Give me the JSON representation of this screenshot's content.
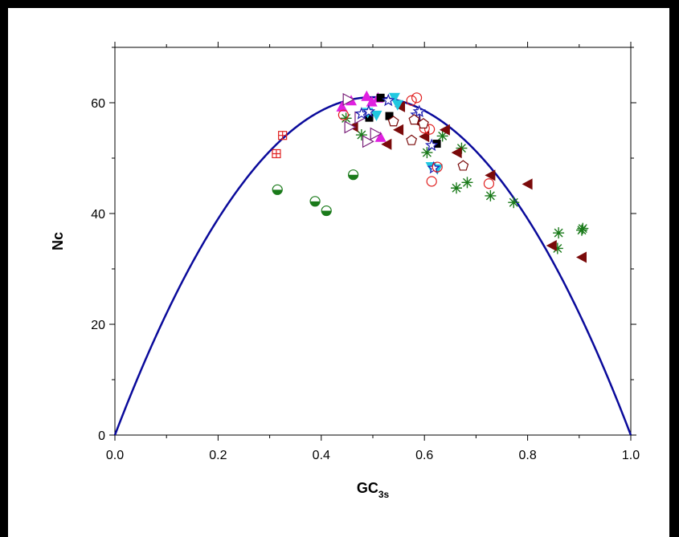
{
  "chart_data": {
    "type": "scatter",
    "title": "",
    "xlabel": "GC",
    "xlabel_sub": "3s",
    "ylabel": "Nc",
    "xlim": [
      0.0,
      1.0
    ],
    "ylim": [
      0,
      70
    ],
    "xticks": [
      "0.0",
      "0.2",
      "0.4",
      "0.6",
      "0.8",
      "1.0"
    ],
    "yticks": [
      "0",
      "20",
      "40",
      "60"
    ],
    "grid": false,
    "legend": "none",
    "expected_curve": {
      "formula": "Nc = 2 + GC3s + 29 / (GC3s^2 + (1 - GC3s)^2)",
      "color": "#0a0a9b"
    },
    "series": [
      {
        "marker": "half-filled-circle",
        "color": "#1a7a1a",
        "points": [
          [
            0.315,
            44.3
          ],
          [
            0.388,
            42.2
          ],
          [
            0.41,
            40.5
          ],
          [
            0.462,
            47.0
          ]
        ]
      },
      {
        "marker": "boxed-plus",
        "color": "#e02020",
        "points": [
          [
            0.313,
            50.8
          ],
          [
            0.325,
            54.1
          ]
        ]
      },
      {
        "marker": "asterisk",
        "color": "#1a7a1a",
        "points": [
          [
            0.448,
            57.2
          ],
          [
            0.478,
            54.2
          ],
          [
            0.605,
            51.0
          ],
          [
            0.635,
            54.0
          ],
          [
            0.672,
            51.8
          ],
          [
            0.662,
            44.6
          ],
          [
            0.683,
            45.6
          ],
          [
            0.728,
            43.2
          ],
          [
            0.773,
            42.0
          ],
          [
            0.86,
            36.5
          ],
          [
            0.858,
            33.7
          ],
          [
            0.905,
            37.0
          ],
          [
            0.907,
            37.3
          ]
        ]
      },
      {
        "marker": "triangle-left",
        "color": "#7a0a0a",
        "points": [
          [
            0.462,
            55.7
          ],
          [
            0.527,
            52.5
          ],
          [
            0.55,
            55.1
          ],
          [
            0.553,
            59.3
          ],
          [
            0.583,
            56.7
          ],
          [
            0.6,
            53.9
          ],
          [
            0.64,
            55.1
          ],
          [
            0.663,
            51.0
          ],
          [
            0.728,
            46.9
          ],
          [
            0.8,
            45.3
          ],
          [
            0.847,
            34.2
          ],
          [
            0.905,
            32.1
          ]
        ]
      },
      {
        "marker": "triangle-up",
        "color": "#e020e0",
        "points": [
          [
            0.44,
            59.3
          ],
          [
            0.458,
            60.4
          ],
          [
            0.488,
            61.2
          ],
          [
            0.498,
            60.2
          ],
          [
            0.515,
            53.8
          ],
          [
            0.51,
            60.9
          ]
        ]
      },
      {
        "marker": "triangle-right-open",
        "color": "#7a207a",
        "points": [
          [
            0.452,
            60.6
          ],
          [
            0.455,
            55.6
          ],
          [
            0.49,
            53.0
          ],
          [
            0.505,
            54.4
          ],
          [
            0.475,
            57.3
          ]
        ]
      },
      {
        "marker": "square",
        "color": "#000000",
        "points": [
          [
            0.493,
            57.3
          ],
          [
            0.515,
            60.9
          ],
          [
            0.532,
            57.6
          ],
          [
            0.624,
            52.6
          ]
        ]
      },
      {
        "marker": "triangle-down",
        "color": "#20c8e0",
        "points": [
          [
            0.49,
            58.2
          ],
          [
            0.507,
            57.7
          ],
          [
            0.542,
            60.9
          ],
          [
            0.548,
            59.6
          ],
          [
            0.625,
            48.0
          ],
          [
            0.613,
            48.4
          ]
        ]
      },
      {
        "marker": "star-open",
        "color": "#1a1ab0",
        "points": [
          [
            0.478,
            58.0
          ],
          [
            0.492,
            58.4
          ],
          [
            0.53,
            60.4
          ],
          [
            0.585,
            57.8
          ],
          [
            0.59,
            58.4
          ],
          [
            0.614,
            52.3
          ],
          [
            0.618,
            48.2
          ]
        ]
      },
      {
        "marker": "circle-open",
        "color": "#e02020",
        "points": [
          [
            0.443,
            57.8
          ],
          [
            0.575,
            60.4
          ],
          [
            0.585,
            60.9
          ],
          [
            0.6,
            55.4
          ],
          [
            0.61,
            55.2
          ],
          [
            0.614,
            45.8
          ],
          [
            0.625,
            48.4
          ],
          [
            0.725,
            45.4
          ]
        ]
      },
      {
        "marker": "pentagon-open",
        "color": "#7a0a0a",
        "points": [
          [
            0.54,
            56.6
          ],
          [
            0.575,
            53.2
          ],
          [
            0.58,
            56.9
          ],
          [
            0.598,
            56.2
          ],
          [
            0.675,
            48.6
          ]
        ]
      }
    ]
  }
}
